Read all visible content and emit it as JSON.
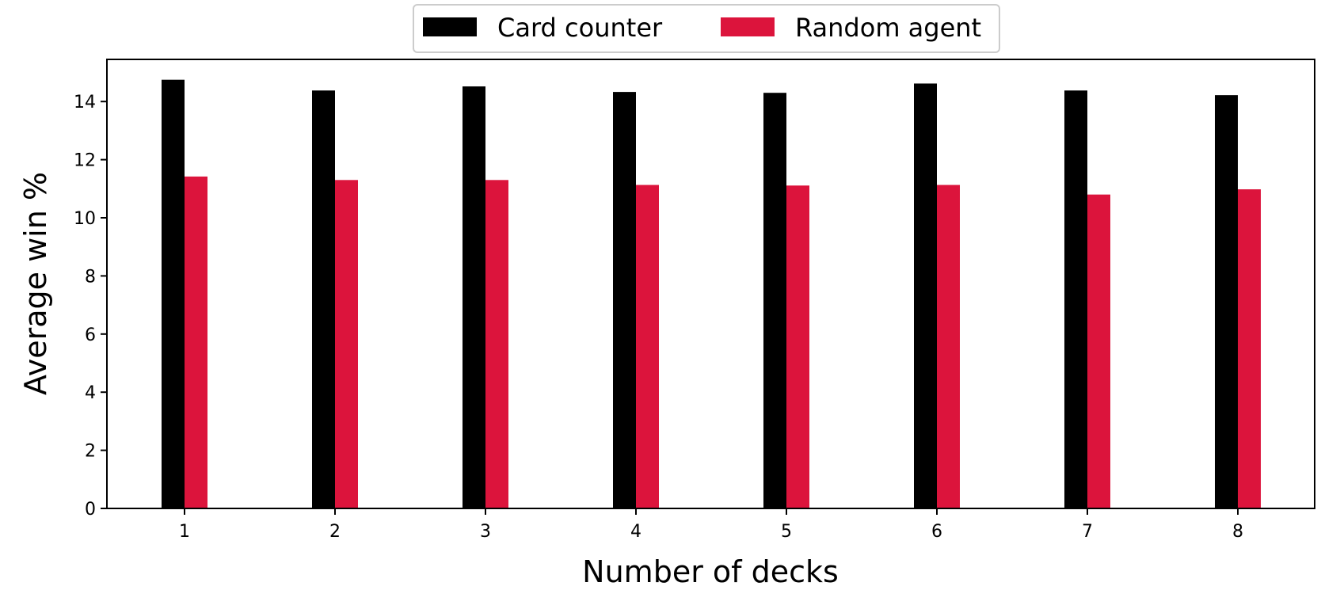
{
  "chart_data": {
    "type": "bar",
    "categories": [
      "1",
      "2",
      "3",
      "4",
      "5",
      "6",
      "7",
      "8"
    ],
    "series": [
      {
        "name": "Card counter",
        "color": "#000000",
        "values": [
          14.75,
          14.38,
          14.52,
          14.33,
          14.3,
          14.62,
          14.38,
          14.22
        ]
      },
      {
        "name": "Random agent",
        "color": "#dc143c",
        "values": [
          11.42,
          11.3,
          11.3,
          11.13,
          11.11,
          11.13,
          10.8,
          10.98
        ]
      }
    ],
    "xlabel": "Number of decks",
    "ylabel": "Average win %",
    "ylim": [
      0,
      15.45
    ],
    "yticks": [
      0,
      2,
      4,
      6,
      8,
      10,
      12,
      14
    ],
    "legend_position": "top-center",
    "grid": false
  }
}
